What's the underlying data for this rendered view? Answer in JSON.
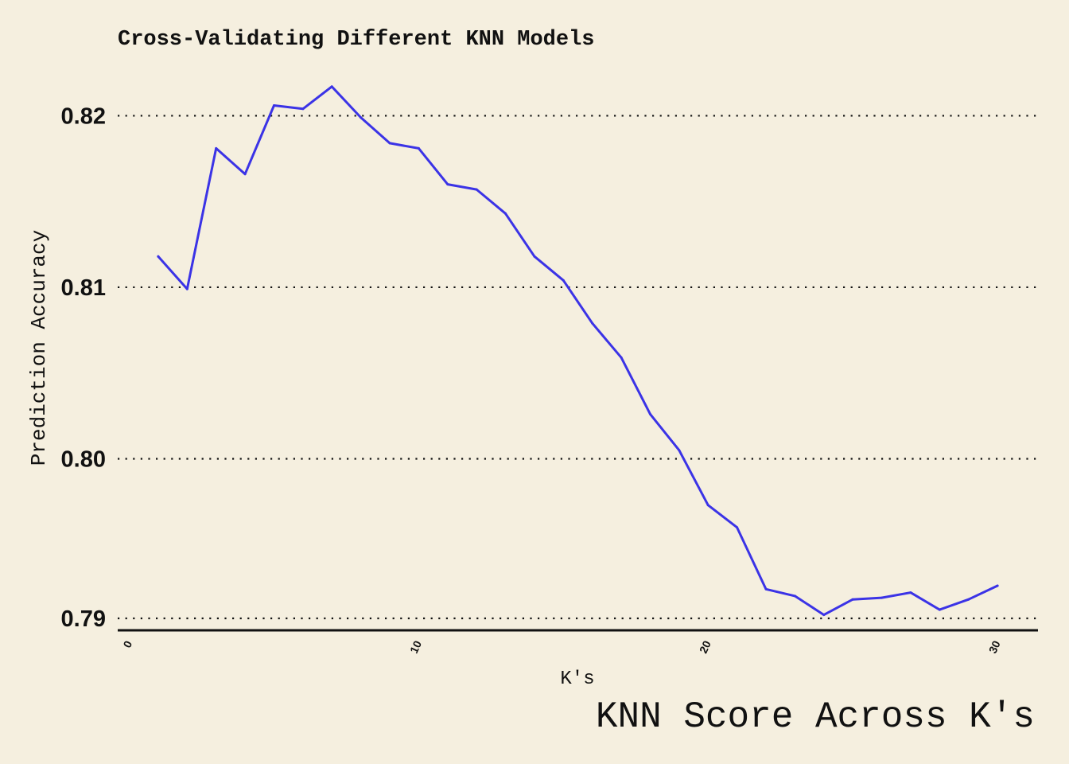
{
  "chart_data": {
    "type": "line",
    "title": "Cross-Validating Different KNN Models",
    "xlabel": "K's",
    "ylabel": "Prediction Accuracy",
    "caption": "KNN Score Across K's",
    "xlim": [
      -0.4,
      31.4
    ],
    "ylim": [
      0.79,
      0.8235
    ],
    "x_ticks": [
      0,
      10,
      20,
      30
    ],
    "x_tick_labels": [
      "0",
      "10",
      "20",
      "30"
    ],
    "y_ticks": [
      0.79,
      0.8,
      0.81,
      0.82
    ],
    "y_tick_labels": [
      "0.79",
      "0.80",
      "0.81",
      "0.82"
    ],
    "grid": "horizontal dotted",
    "series": [
      {
        "color": "#3b33e6",
        "x": [
          1,
          2,
          3,
          4,
          5,
          6,
          7,
          8,
          9,
          10,
          11,
          12,
          13,
          14,
          15,
          16,
          17,
          18,
          19,
          20,
          21,
          22,
          23,
          24,
          25,
          26,
          27,
          28,
          29,
          30
        ],
        "y": [
          0.8118,
          0.8099,
          0.8181,
          0.8166,
          0.8206,
          0.8204,
          0.8217,
          0.8199,
          0.8184,
          0.8181,
          0.816,
          0.8157,
          0.8143,
          0.8118,
          0.8104,
          0.8079,
          0.8059,
          0.8026,
          0.8005,
          0.7973,
          0.796,
          0.7924,
          0.792,
          0.7909,
          0.7918,
          0.7919,
          0.7922,
          0.7912,
          0.7918,
          0.7926
        ]
      }
    ]
  }
}
